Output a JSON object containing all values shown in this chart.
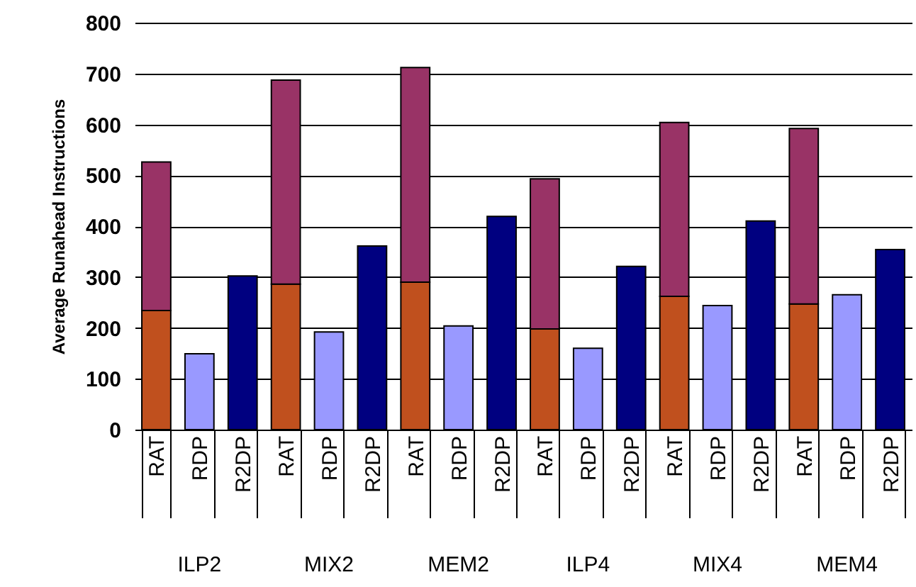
{
  "chart_data": {
    "type": "bar",
    "ylabel": "Average Runahead Instructions",
    "categories": [
      "RAT",
      "RDP",
      "R2DP",
      "RAT",
      "RDP",
      "R2DP",
      "RAT",
      "RDP",
      "R2DP",
      "RAT",
      "RDP",
      "R2DP",
      "RAT",
      "RDP",
      "R2DP",
      "RAT",
      "RDP",
      "R2DP"
    ],
    "annotations": [
      "ILP2",
      "MIX2",
      "MEM2",
      "ILP4",
      "MIX4",
      "MEM4"
    ],
    "stacked": true,
    "series": [
      {
        "color": "#c0501e",
        "values": [
          234,
          null,
          null,
          286,
          null,
          null,
          290,
          null,
          null,
          198,
          null,
          null,
          262,
          null,
          null,
          247,
          null,
          null
        ]
      },
      {
        "color": "#993366",
        "values": [
          292,
          null,
          null,
          401,
          null,
          null,
          422,
          null,
          null,
          295,
          null,
          null,
          342,
          null,
          null,
          345,
          null,
          null
        ]
      },
      {
        "color": "#9999ff",
        "values": [
          null,
          149,
          null,
          null,
          192,
          null,
          null,
          204,
          null,
          null,
          160,
          null,
          null,
          244,
          null,
          null,
          265,
          null
        ]
      },
      {
        "color": "#000080",
        "values": [
          null,
          null,
          302,
          null,
          null,
          361,
          null,
          null,
          419,
          null,
          null,
          321,
          null,
          null,
          410,
          null,
          null,
          354
        ]
      }
    ],
    "ylim": [
      0,
      800
    ],
    "yticks": [
      0,
      100,
      200,
      300,
      400,
      500,
      600,
      700,
      800
    ],
    "grid": "y"
  }
}
